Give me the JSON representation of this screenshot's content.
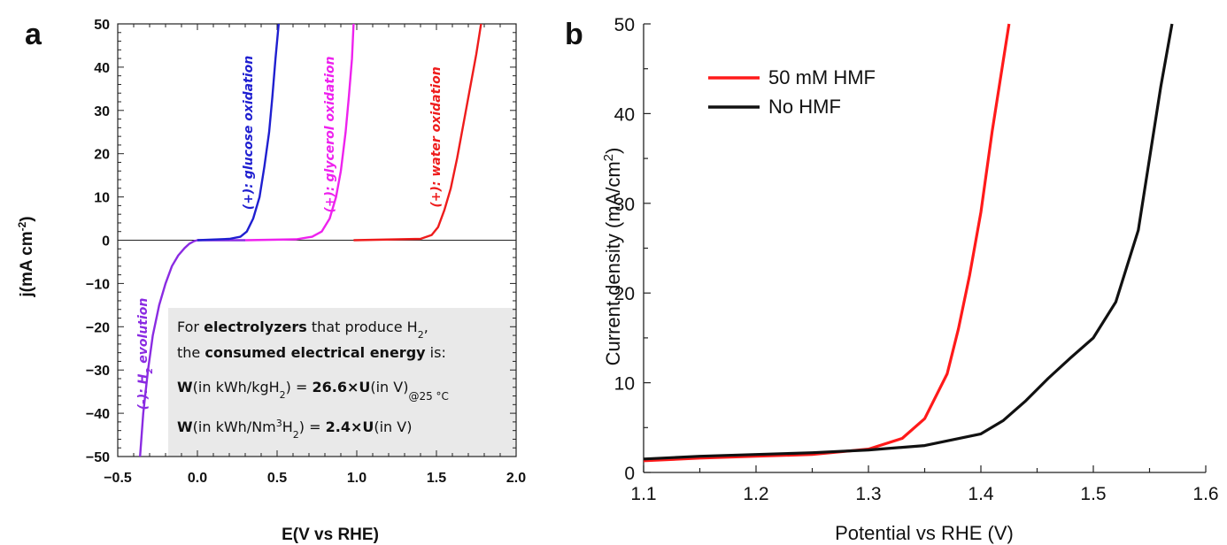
{
  "chart_data": [
    {
      "panel": "a",
      "type": "line",
      "xlabel": "E(V vs RHE)",
      "ylabel": "j(mA cm",
      "ylabel_sup": "-2",
      "xlim": [
        -0.5,
        2.0
      ],
      "ylim": [
        -50,
        50
      ],
      "xticks": [
        "−0.5",
        "0.0",
        "0.5",
        "1.0",
        "1.5",
        "2.0"
      ],
      "yticks": [
        "50",
        "40",
        "30",
        "20",
        "10",
        "0",
        "−10",
        "−20",
        "−30",
        "−40",
        "−50"
      ],
      "grid": false,
      "series": [
        {
          "name_prefix": "(-): H",
          "name_sub": "2",
          "name_suffix": " evolution",
          "color": "#8a2be2",
          "x": [
            -0.36,
            -0.34,
            -0.31,
            -0.28,
            -0.24,
            -0.2,
            -0.16,
            -0.12,
            -0.08,
            -0.05,
            -0.02,
            0.0,
            0.3
          ],
          "y": [
            -50,
            -40,
            -30,
            -22,
            -15,
            -10,
            -6,
            -3.5,
            -1.8,
            -0.8,
            -0.2,
            0,
            0
          ]
        },
        {
          "name": "(+): glucose oxidation",
          "color": "#1f1fd0",
          "x": [
            0.0,
            0.2,
            0.27,
            0.31,
            0.35,
            0.39,
            0.42,
            0.45,
            0.47,
            0.49,
            0.51
          ],
          "y": [
            0,
            0.3,
            0.8,
            2,
            5,
            10,
            17,
            25,
            33,
            42,
            50
          ]
        },
        {
          "name": "(+): glycerol oxidation",
          "color": "#ee22ee",
          "x": [
            0.3,
            0.62,
            0.72,
            0.78,
            0.83,
            0.87,
            0.9,
            0.93,
            0.95,
            0.97,
            0.98
          ],
          "y": [
            0,
            0.2,
            0.8,
            2,
            5,
            10,
            16,
            25,
            33,
            42,
            50
          ]
        },
        {
          "name": "(+): water oxidation",
          "color": "#ee1c1c",
          "x": [
            0.98,
            1.4,
            1.47,
            1.51,
            1.55,
            1.59,
            1.63,
            1.67,
            1.71,
            1.75,
            1.78
          ],
          "y": [
            0,
            0.3,
            1.2,
            3,
            7,
            12,
            19,
            27,
            35,
            43,
            50
          ]
        }
      ],
      "annotation": {
        "line1_pre": "For ",
        "line1_bold": "electrolyzers",
        "line1_mid": " that produce H",
        "line1_sub": "2",
        "line1_end": ",",
        "line2_pre": "the ",
        "line2_bold": "consumed electrical energy",
        "line2_end": " is:",
        "line3_w": "W",
        "line3_unit": "(in kWh/kgH",
        "line3_sub": "2",
        "line3_close": ") = ",
        "line3_bold": "26.6×U",
        "line3_end": "(in V)",
        "line3_cond": "@25 °C",
        "line4_w": "W",
        "line4_unit": "(in kWh/Nm",
        "line4_sup": "3",
        "line4_h": "H",
        "line4_sub": "2",
        "line4_close": ") = ",
        "line4_bold": "2.4×U",
        "line4_end": "(in V)"
      }
    },
    {
      "panel": "b",
      "type": "line",
      "xlabel": "Potential vs RHE (V)",
      "ylabel": "Current density (mA/cm",
      "ylabel_sup": "2",
      "ylabel_end": ")",
      "xlim": [
        1.1,
        1.6
      ],
      "ylim": [
        0,
        50
      ],
      "xticks": [
        "1.1",
        "1.2",
        "1.3",
        "1.4",
        "1.5",
        "1.6"
      ],
      "yticks": [
        "0",
        "10",
        "20",
        "30",
        "40",
        "50"
      ],
      "legend": "top-left",
      "grid": false,
      "series": [
        {
          "name": "50 mM HMF",
          "color": "#ff1a1a",
          "x": [
            1.1,
            1.15,
            1.2,
            1.25,
            1.3,
            1.33,
            1.35,
            1.37,
            1.38,
            1.39,
            1.4,
            1.41,
            1.42,
            1.425
          ],
          "y": [
            1.3,
            1.6,
            1.8,
            2.0,
            2.6,
            3.8,
            6.0,
            11,
            16,
            22,
            29,
            38,
            46,
            50
          ]
        },
        {
          "name": "No HMF",
          "color": "#111111",
          "x": [
            1.1,
            1.15,
            1.2,
            1.25,
            1.3,
            1.35,
            1.4,
            1.42,
            1.44,
            1.46,
            1.48,
            1.5,
            1.52,
            1.54,
            1.55,
            1.56,
            1.57
          ],
          "y": [
            1.5,
            1.8,
            2.0,
            2.2,
            2.5,
            3.0,
            4.3,
            5.8,
            8.0,
            10.5,
            12.8,
            15.0,
            19,
            27,
            35,
            43,
            50
          ]
        }
      ]
    }
  ]
}
